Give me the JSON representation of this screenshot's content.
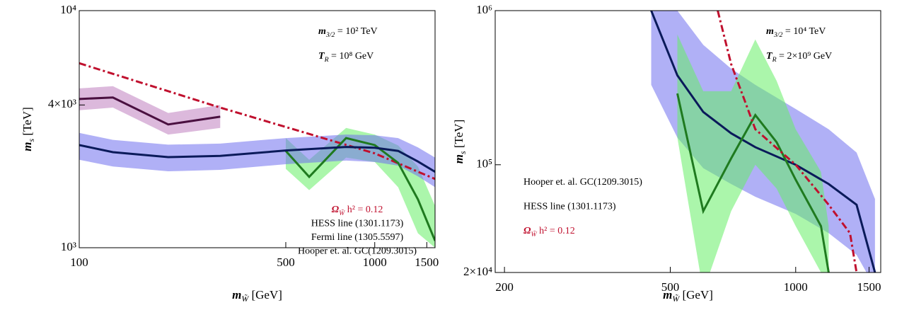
{
  "chart_data": [
    {
      "type": "line",
      "xlabel": {
        "main": "m",
        "sub": "W̃",
        "rest": " [GeV]"
      },
      "ylabel": {
        "main": "m",
        "sub": "s",
        "rest": " [TeV]"
      },
      "log_x": true,
      "log_y": true,
      "xlim": [
        100,
        1600
      ],
      "ylim": [
        1000,
        10000
      ],
      "xticks": [
        100,
        500,
        1000,
        1500
      ],
      "yticks": [
        {
          "value": 1000,
          "label": "10³"
        },
        {
          "value": 4000,
          "label": "4×10³"
        },
        {
          "value": 10000,
          "label": "10⁴"
        }
      ],
      "annotations": [
        {
          "main": "m",
          "sub": "3/2",
          "rest": " = 10² TeV"
        },
        {
          "main": "T",
          "sub": "R",
          "rest": " = 10⁸ GeV"
        }
      ],
      "series": [
        {
          "name": {
            "main": "Ω",
            "sub": "W̃",
            "rest": " h² = 0.12"
          },
          "color": "#c0102e",
          "line_color": "#c0102e",
          "dash": true,
          "x": [
            100,
            300,
            1000,
            1600
          ],
          "values": [
            6000,
            3900,
            2500,
            1950
          ]
        },
        {
          "name": "HESS line (1301.1173)",
          "color": "#1a9a1a",
          "line_color": "#1f7a1f",
          "band_color": "#66ee66",
          "x": [
            500,
            600,
            800,
            1000,
            1200,
            1400,
            1600
          ],
          "values": [
            2560,
            1990,
            2900,
            2710,
            2280,
            1600,
            1070
          ],
          "lower": [
            2150,
            1750,
            2400,
            2300,
            1800,
            1150,
            1000
          ],
          "upper": [
            2900,
            2350,
            3200,
            3000,
            2700,
            2200,
            1500
          ]
        },
        {
          "name": "Fermi line (1305.5597)",
          "color": "#a030a0",
          "line_color": "#4a1040",
          "band_color": "#c080c0",
          "x": [
            100,
            130,
            200,
            300
          ],
          "values": [
            4240,
            4300,
            3310,
            3570
          ],
          "lower": [
            3800,
            3900,
            3000,
            3200
          ],
          "upper": [
            4700,
            4800,
            3700,
            4000
          ]
        },
        {
          "name": "Hooper et. al. GC(1209.3015)",
          "color": "#2a2ad0",
          "line_color": "#0a1a5a",
          "band_color": "#7070ee",
          "x": [
            100,
            130,
            200,
            300,
            500,
            800,
            1000,
            1200,
            1400,
            1600
          ],
          "values": [
            2710,
            2530,
            2410,
            2440,
            2570,
            2660,
            2640,
            2560,
            2310,
            2090
          ],
          "lower": [
            2350,
            2200,
            2100,
            2130,
            2250,
            2330,
            2300,
            2220,
            2000,
            1800
          ],
          "upper": [
            3050,
            2850,
            2720,
            2750,
            2900,
            3000,
            2980,
            2900,
            2650,
            2400
          ]
        }
      ]
    },
    {
      "type": "line",
      "xlabel": {
        "main": "m",
        "sub": "W̃",
        "rest": " [GeV]"
      },
      "ylabel": {
        "main": "m",
        "sub": "s",
        "rest": " [TeV]"
      },
      "log_x": true,
      "log_y": true,
      "xlim": [
        190,
        1600
      ],
      "ylim": [
        20000,
        1000000
      ],
      "xticks": [
        200,
        500,
        1000,
        1500
      ],
      "yticks": [
        {
          "value": 20000,
          "label": "2×10⁴"
        },
        {
          "value": 100000,
          "label": "10⁵"
        },
        {
          "value": 1000000,
          "label": "10⁶"
        }
      ],
      "annotations": [
        {
          "main": "m",
          "sub": "3/2",
          "rest": " = 10⁴ TeV"
        },
        {
          "main": "T",
          "sub": "R",
          "rest": " = 2×10⁹ GeV"
        }
      ],
      "series": [
        {
          "name": "Hooper et. al. GC(1209.3015)",
          "color": "#2a2ad0",
          "line_color": "#0a1a5a",
          "band_color": "#7070ee",
          "x": [
            450,
            520,
            600,
            700,
            800,
            1000,
            1200,
            1400,
            1550
          ],
          "values": [
            1000000,
            380000,
            220000,
            160000,
            130000,
            100000,
            75000,
            55000,
            20000
          ],
          "lower": [
            330000,
            150000,
            95000,
            75000,
            62000,
            48000,
            36000,
            26000,
            16000
          ],
          "upper": [
            3000000,
            1000000,
            600000,
            420000,
            330000,
            230000,
            170000,
            120000,
            60000
          ]
        },
        {
          "name": "HESS line (1301.1173)",
          "color": "#1a9a1a",
          "line_color": "#1f7a1f",
          "band_color": "#66ee66",
          "x": [
            520,
            600,
            700,
            800,
            900,
            1000,
            1150,
            1200
          ],
          "values": [
            290000,
            50000,
            110000,
            210000,
            140000,
            80000,
            40000,
            20000
          ],
          "lower": [
            150000,
            15000,
            50000,
            100000,
            70000,
            40000,
            20000,
            12000
          ],
          "upper": [
            700000,
            300000,
            300000,
            650000,
            350000,
            170000,
            90000,
            40000
          ]
        },
        {
          "name": {
            "main": "Ω",
            "sub": "W̃",
            "rest": " h² = 0.12"
          },
          "color": "#c0102e",
          "line_color": "#c0102e",
          "dash": true,
          "x": [
            650,
            700,
            800,
            1000,
            1200,
            1350,
            1400
          ],
          "values": [
            1000000,
            450000,
            170000,
            100000,
            55000,
            36000,
            20000
          ]
        }
      ]
    }
  ]
}
